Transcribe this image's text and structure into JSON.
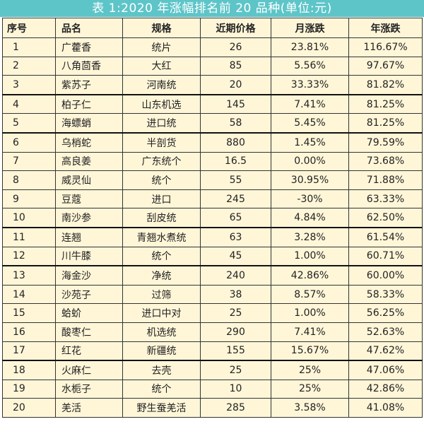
{
  "title": "表 1:2020 年涨幅排名前 20 品种(单位:元)",
  "headers": [
    "序号",
    "品名",
    "规格",
    "近期价格",
    "月涨跌",
    "年涨跌"
  ],
  "rows": [
    [
      "1",
      "广藿香",
      "统片",
      "26",
      "23.81%",
      "116.67%"
    ],
    [
      "2",
      "八角茴香",
      "大红",
      "85",
      "5.56%",
      "97.67%"
    ],
    [
      "3",
      "紫苏子",
      "河南统",
      "20",
      "33.33%",
      "81.82%"
    ],
    [
      "4",
      "柏子仁",
      "山东机选",
      "145",
      "7.41%",
      "81.25%"
    ],
    [
      "5",
      "海螵蛸",
      "进口统",
      "58",
      "5.45%",
      "81.25%"
    ],
    [
      "6",
      "乌梢蛇",
      "半剖货",
      "880",
      "1.45%",
      "79.59%"
    ],
    [
      "7",
      "高良姜",
      "广东统个",
      "16.5",
      "0.00%",
      "73.68%"
    ],
    [
      "8",
      "威灵仙",
      "统个",
      "55",
      "30.95%",
      "71.88%"
    ],
    [
      "9",
      "豆蔻",
      "进口",
      "245",
      "-30%",
      "63.33%"
    ],
    [
      "10",
      "南沙参",
      "刮皮统",
      "65",
      "4.84%",
      "62.50%"
    ],
    [
      "11",
      "连翘",
      "青翘水煮统",
      "63",
      "3.28%",
      "61.54%"
    ],
    [
      "12",
      "川牛膝",
      "统个",
      "45",
      "1.00%",
      "60.71%"
    ],
    [
      "13",
      "海金沙",
      "净统",
      "240",
      "42.86%",
      "60.00%"
    ],
    [
      "14",
      "沙苑子",
      "过筛",
      "38",
      "8.57%",
      "58.33%"
    ],
    [
      "15",
      "蛤蚧",
      "进口中对",
      "25",
      "1.00%",
      "56.25%"
    ],
    [
      "16",
      "酸枣仁",
      "机选统",
      "290",
      "7.41%",
      "52.63%"
    ],
    [
      "17",
      "红花",
      "新疆统",
      "155",
      "15.67%",
      "47.62%"
    ],
    [
      "18",
      "火麻仁",
      "去壳",
      "25",
      "25%",
      "47.06%"
    ],
    [
      "19",
      "水栀子",
      "统个",
      "10",
      "25%",
      "42.86%"
    ],
    [
      "20",
      "羌活",
      "野生蚕羌活",
      "285",
      "3.58%",
      "41.08%"
    ]
  ],
  "colors": {
    "title_bg": "#5dc5c8",
    "table_bg": "#fff6d8"
  }
}
